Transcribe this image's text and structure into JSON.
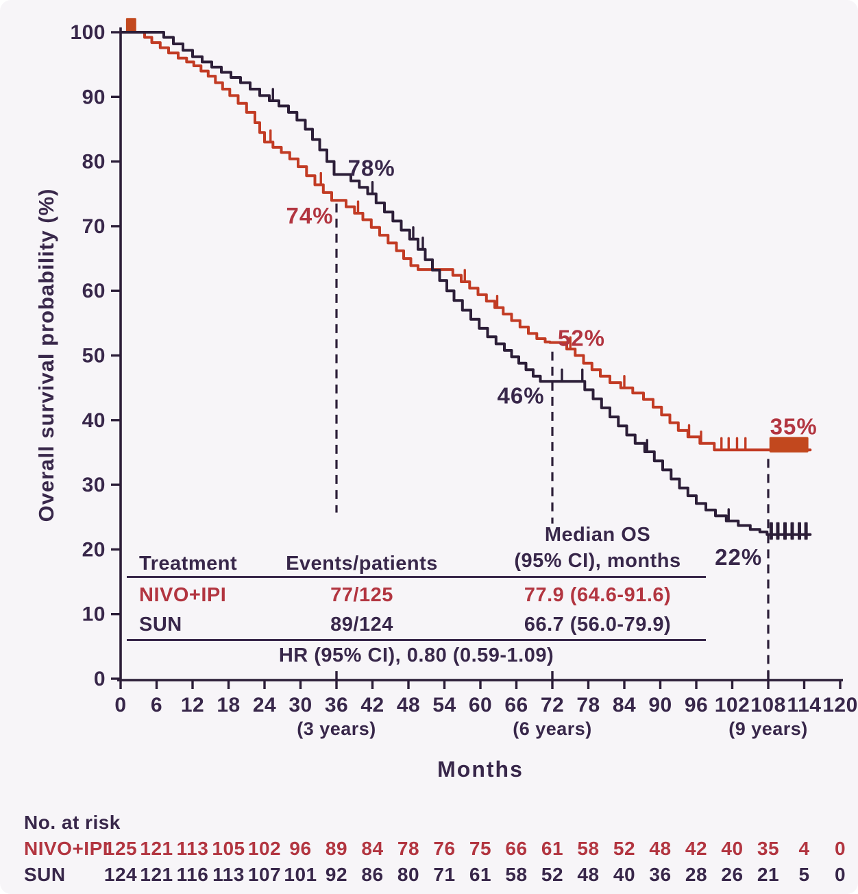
{
  "figure_background": "#f7f5f8",
  "colors": {
    "dark_text": "#38274a",
    "dark_curve": "#2c1e38",
    "red_curve": "#c23b24",
    "red_fill": "#c2481e",
    "red_text": "#b23540"
  },
  "chart_data": {
    "type": "line",
    "subtype": "kaplan-meier-step",
    "title": "",
    "xlabel": "Months",
    "ylabel": "Overall survival probability (%)",
    "xlim": [
      0,
      120
    ],
    "ylim": [
      0,
      100
    ],
    "grid": false,
    "x_ticks": [
      0,
      6,
      12,
      18,
      24,
      30,
      36,
      42,
      48,
      54,
      60,
      66,
      72,
      78,
      84,
      90,
      96,
      102,
      108,
      114,
      120
    ],
    "y_ticks": [
      0,
      10,
      20,
      30,
      40,
      50,
      60,
      70,
      80,
      90,
      100
    ],
    "year_marks": [
      {
        "month": 36,
        "label": "(3 years)"
      },
      {
        "month": 72,
        "label": "(6 years)"
      },
      {
        "month": 108,
        "label": "(9 years)"
      }
    ],
    "dashed_lines": [
      {
        "month": 36,
        "from_pct": 73.5,
        "to_pct": 25.7
      },
      {
        "month": 72,
        "from_pct": 50.6,
        "to_pct": 24.0
      },
      {
        "month": 108,
        "from_pct": 34.0,
        "to_pct": 0.3
      }
    ],
    "annotations": [
      {
        "text": "78%",
        "month": 37.9,
        "pct": 77.8,
        "color": "dark"
      },
      {
        "text": "74%",
        "month": 27.6,
        "pct": 70.4,
        "color": "red"
      },
      {
        "text": "52%",
        "month": 72.9,
        "pct": 51.5,
        "color": "red"
      },
      {
        "text": "46%",
        "month": 62.8,
        "pct": 42.6,
        "color": "dark"
      },
      {
        "text": "35%",
        "month": 108.3,
        "pct": 37.8,
        "color": "red"
      },
      {
        "text": "22%",
        "month": 99.1,
        "pct": 17.6,
        "color": "dark"
      }
    ],
    "series": [
      {
        "name": "NIVO+IPI",
        "color_key": "red",
        "landmarks": [
          {
            "month": 36,
            "pct": 74
          },
          {
            "month": 72,
            "pct": 52
          },
          {
            "month": 108,
            "pct": 35
          }
        ],
        "points": [
          [
            0,
            100
          ],
          [
            4,
            99.2
          ],
          [
            5.2,
            98.4
          ],
          [
            6.6,
            97.6
          ],
          [
            8,
            96.8
          ],
          [
            9.6,
            96
          ],
          [
            11,
            95.4
          ],
          [
            12.2,
            94.8
          ],
          [
            13.4,
            94
          ],
          [
            14.6,
            93.2
          ],
          [
            15.8,
            92.2
          ],
          [
            17,
            91.2
          ],
          [
            18.2,
            90.2
          ],
          [
            19.6,
            89
          ],
          [
            21,
            87.6
          ],
          [
            22.4,
            86
          ],
          [
            23.2,
            84.5
          ],
          [
            24,
            83
          ],
          [
            25.4,
            82.2
          ],
          [
            26.8,
            81.4
          ],
          [
            28.2,
            80.4
          ],
          [
            29.6,
            79.2
          ],
          [
            31,
            77.8
          ],
          [
            32.4,
            76.4
          ],
          [
            33.8,
            75.2
          ],
          [
            35.2,
            74
          ],
          [
            37.6,
            73
          ],
          [
            39,
            72
          ],
          [
            40.4,
            71
          ],
          [
            41.8,
            69.8
          ],
          [
            43.2,
            68.6
          ],
          [
            44.6,
            67.4
          ],
          [
            46,
            66.2
          ],
          [
            47.2,
            65
          ],
          [
            48.4,
            63.9
          ],
          [
            49.6,
            63.3
          ],
          [
            55.4,
            62.4
          ],
          [
            56.8,
            61.4
          ],
          [
            58.2,
            60.4
          ],
          [
            59.6,
            59.4
          ],
          [
            61,
            58.4
          ],
          [
            62.4,
            57.4
          ],
          [
            63.8,
            56.4
          ],
          [
            65.2,
            55.4
          ],
          [
            66.6,
            54.4
          ],
          [
            68,
            53.4
          ],
          [
            69.4,
            52.6
          ],
          [
            70.8,
            52.1
          ],
          [
            71.6,
            52
          ],
          [
            74.4,
            51
          ],
          [
            75.8,
            50
          ],
          [
            77.2,
            48.8
          ],
          [
            78.6,
            47.8
          ],
          [
            80,
            46.8
          ],
          [
            81.6,
            45.8
          ],
          [
            83.4,
            45
          ],
          [
            85.4,
            44.2
          ],
          [
            87.2,
            43.2
          ],
          [
            88.8,
            42
          ],
          [
            90.2,
            40.8
          ],
          [
            91.6,
            39.6
          ],
          [
            93,
            38.4
          ],
          [
            94.6,
            37.4
          ],
          [
            96.6,
            36.4
          ],
          [
            99,
            35.4
          ],
          [
            115,
            35.4
          ]
        ],
        "censor_ticks": [
          [
            25,
            83
          ],
          [
            33.4,
            76.4
          ],
          [
            39.6,
            72
          ],
          [
            57.4,
            61.4
          ],
          [
            62.8,
            57.4
          ],
          [
            75,
            51
          ],
          [
            84,
            45
          ],
          [
            94.8,
            37.4
          ],
          [
            96.8,
            36.4
          ],
          [
            100.2,
            35.4
          ],
          [
            101.4,
            35.4
          ],
          [
            102.8,
            35.4
          ],
          [
            104.2,
            35.4
          ]
        ],
        "start_censor_block": {
          "from": 0.9,
          "to": 2.6,
          "pct_top": 102.2,
          "pct_bottom": 100
        },
        "end_censor_block": {
          "from": 108.2,
          "to": 114.7,
          "pct_top": 37.4,
          "pct_bottom": 35.0
        }
      },
      {
        "name": "SUN",
        "color_key": "dark",
        "landmarks": [
          {
            "month": 36,
            "pct": 78
          },
          {
            "month": 72,
            "pct": 46
          },
          {
            "month": 108,
            "pct": 22
          }
        ],
        "points": [
          [
            0,
            100
          ],
          [
            7.2,
            99.2
          ],
          [
            8.8,
            98.2
          ],
          [
            10.4,
            97.2
          ],
          [
            12,
            96.2
          ],
          [
            13.6,
            95.4
          ],
          [
            15.2,
            94.6
          ],
          [
            16.8,
            93.8
          ],
          [
            18.4,
            93
          ],
          [
            20,
            92.2
          ],
          [
            21.6,
            91.2
          ],
          [
            23.2,
            90.2
          ],
          [
            24.8,
            89.4
          ],
          [
            26.4,
            88.6
          ],
          [
            28,
            87.6
          ],
          [
            29.4,
            86.4
          ],
          [
            30.8,
            85
          ],
          [
            32,
            83.4
          ],
          [
            33.2,
            81.8
          ],
          [
            34.4,
            80
          ],
          [
            35.6,
            78
          ],
          [
            38.4,
            77
          ],
          [
            39.8,
            76
          ],
          [
            41.2,
            75
          ],
          [
            42.6,
            73.6
          ],
          [
            44,
            72.2
          ],
          [
            45.4,
            70.8
          ],
          [
            46.8,
            69.4
          ],
          [
            48.2,
            68
          ],
          [
            49.6,
            66.4
          ],
          [
            50.8,
            64.8
          ],
          [
            52,
            63.2
          ],
          [
            53.2,
            61.6
          ],
          [
            54.4,
            60
          ],
          [
            55.6,
            58.5
          ],
          [
            57,
            57
          ],
          [
            58.4,
            55.6
          ],
          [
            59.8,
            54.2
          ],
          [
            61.2,
            52.9
          ],
          [
            62.6,
            51.8
          ],
          [
            64,
            50.8
          ],
          [
            65.2,
            49.8
          ],
          [
            66.4,
            48.8
          ],
          [
            67.6,
            47.8
          ],
          [
            68.8,
            46.8
          ],
          [
            70,
            46
          ],
          [
            77.4,
            44.7
          ],
          [
            78.8,
            43.3
          ],
          [
            80.2,
            41.9
          ],
          [
            81.6,
            40.5
          ],
          [
            83,
            39.1
          ],
          [
            84.4,
            37.7
          ],
          [
            85.8,
            36.4
          ],
          [
            87.4,
            35.1
          ],
          [
            89,
            33.7
          ],
          [
            90.4,
            32.3
          ],
          [
            91.8,
            30.9
          ],
          [
            93.2,
            29.5
          ],
          [
            94.6,
            28.3
          ],
          [
            96,
            27.1
          ],
          [
            97.6,
            26.1
          ],
          [
            99.2,
            25.2
          ],
          [
            101,
            24.4
          ],
          [
            103,
            23.7
          ],
          [
            105,
            23.1
          ],
          [
            106.6,
            22.7
          ],
          [
            107.8,
            22.3
          ],
          [
            115,
            22.3
          ]
        ],
        "censor_ticks": [
          [
            25.4,
            89.4
          ],
          [
            42,
            75
          ],
          [
            48.8,
            68
          ],
          [
            50.4,
            66.4
          ],
          [
            73.6,
            46
          ],
          [
            77,
            46
          ],
          [
            87.8,
            35.1
          ],
          [
            101.4,
            24.4
          ]
        ],
        "end_censor_ticks": {
          "months": [
            108.5,
            109.6,
            110.8,
            112.0,
            113.2,
            114.3
          ],
          "pct_top": 24.2,
          "pct_bottom": 21.5,
          "tick_width": 5
        }
      }
    ]
  },
  "stats_table": {
    "header": {
      "treatment": "Treatment",
      "events": "Events/patients",
      "median_line1": "Median OS",
      "median_line2": "(95% CI), months"
    },
    "rows": [
      {
        "treatment": "NIVO+IPI",
        "events": "77/125",
        "median": "77.9 (64.6-91.6)",
        "color": "red"
      },
      {
        "treatment": "SUN",
        "events": "89/124",
        "median": "66.7 (56.0-79.9)",
        "color": "dark"
      }
    ],
    "hr_line": "HR (95% CI), 0.80 (0.59-1.09)"
  },
  "risk_table": {
    "title": "No. at risk",
    "months": [
      0,
      6,
      12,
      18,
      24,
      30,
      36,
      42,
      48,
      54,
      60,
      66,
      72,
      78,
      84,
      90,
      96,
      102,
      108,
      114,
      120
    ],
    "rows": [
      {
        "name": "NIVO+IPI",
        "color": "red",
        "counts": [
          125,
          121,
          113,
          105,
          102,
          96,
          89,
          84,
          78,
          76,
          75,
          66,
          61,
          58,
          52,
          48,
          42,
          40,
          35,
          4,
          0
        ]
      },
      {
        "name": "SUN",
        "color": "dark",
        "counts": [
          124,
          121,
          116,
          113,
          107,
          101,
          92,
          86,
          80,
          71,
          61,
          58,
          52,
          48,
          40,
          36,
          28,
          26,
          21,
          5,
          0
        ]
      }
    ]
  }
}
